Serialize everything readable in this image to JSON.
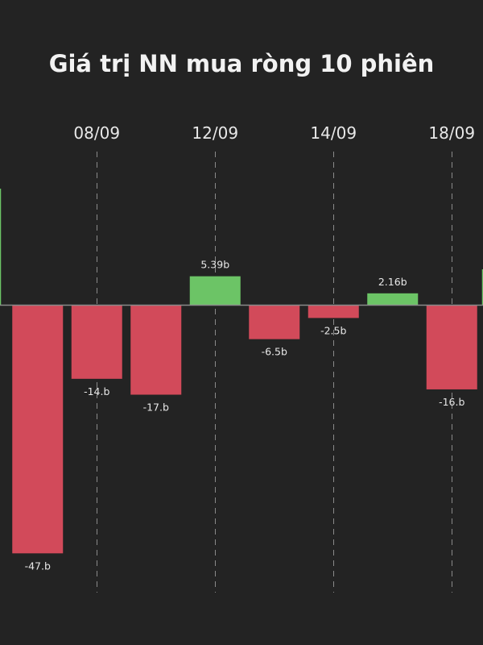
{
  "chart_data": {
    "type": "bar",
    "title": "Giá trị NN mua ròng 10 phiên",
    "categories": [
      "",
      "08/09",
      "",
      "12/09",
      "",
      "14/09",
      "",
      "18/09"
    ],
    "x_tick_labels": [
      "08/09",
      "12/09",
      "14/09",
      "18/09"
    ],
    "values": [
      -47,
      -14,
      -17,
      5.39,
      -6.5,
      -2.5,
      2.16,
      -16
    ],
    "data_labels": [
      "-47.b",
      "-14.b",
      "-17.b",
      "5.39b",
      "-6.5b",
      "-2.5b",
      "2.16b",
      "-16.b"
    ],
    "ylim": [
      -50,
      22
    ],
    "grid": "vertical-dashed",
    "legend": "none",
    "colors": {
      "positive": "#6cc466",
      "negative": "#d24a5a",
      "background": "#232323",
      "text": "#e8e8e8",
      "gridline": "#8a8a8a",
      "baseline": "#8a8a8a"
    }
  }
}
